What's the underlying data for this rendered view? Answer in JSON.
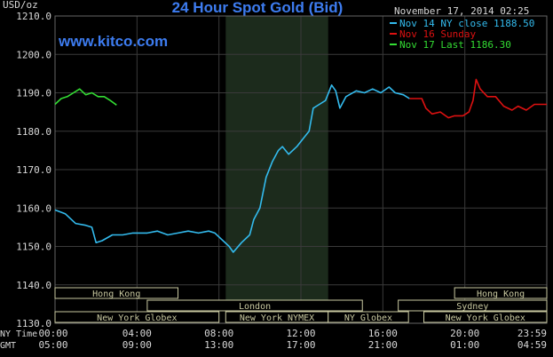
{
  "chart_data": {
    "type": "line",
    "title": "24 Hour Spot Gold (Bid)",
    "ylabel": "USD/oz",
    "watermark": "www.kitco.com",
    "timestamp": "November 17, 2014 02:25",
    "ylim": [
      1130,
      1210
    ],
    "yticks": [
      "1210.0",
      "1200.0",
      "1190.0",
      "1180.0",
      "1170.0",
      "1160.0",
      "1150.0",
      "1140.0",
      "1130.0"
    ],
    "x_rows": [
      {
        "label": "NY Time",
        "ticks": [
          "00:00",
          "04:00",
          "08:00",
          "12:00",
          "16:00",
          "20:00",
          "23:59"
        ]
      },
      {
        "label": "GMT",
        "ticks": [
          "05:00",
          "09:00",
          "13:00",
          "17:00",
          "21:00",
          "01:00",
          "04:59"
        ]
      }
    ],
    "legend": [
      {
        "label": "Nov 14 NY close 1188.50",
        "color": "#33bbee"
      },
      {
        "label": "Nov 16 Sunday",
        "color": "#dd1111"
      },
      {
        "label": "Nov 17 Last 1186.30",
        "color": "#33dd33"
      }
    ],
    "sessions": [
      {
        "name": "Hong Kong",
        "start": 0,
        "end": 6,
        "row": 0
      },
      {
        "name": "London",
        "start": 4.5,
        "end": 15,
        "row": 1
      },
      {
        "name": "New York Globex",
        "start": 0,
        "end": 8,
        "row": 2
      },
      {
        "name": "New York NYMEX",
        "start": 8.33,
        "end": 13.33,
        "row": 2
      },
      {
        "name": "NY Globex",
        "start": 13.33,
        "end": 17.25,
        "row": 2
      },
      {
        "name": "Hong Kong",
        "start": 19.5,
        "end": 24,
        "row": 0
      },
      {
        "name": "Sydney",
        "start": 16.75,
        "end": 24,
        "row": 1
      },
      {
        "name": "New York Globex",
        "start": 18,
        "end": 24,
        "row": 2
      }
    ],
    "series": [
      {
        "name": "Nov 14 NY close 1188.50",
        "color": "#33bbee",
        "points": [
          [
            0,
            1159.5
          ],
          [
            0.5,
            1158.5
          ],
          [
            1,
            1156
          ],
          [
            1.5,
            1155.5
          ],
          [
            1.8,
            1155
          ],
          [
            2,
            1151
          ],
          [
            2.3,
            1151.5
          ],
          [
            2.8,
            1153
          ],
          [
            3.3,
            1153
          ],
          [
            3.8,
            1153.5
          ],
          [
            4.5,
            1153.5
          ],
          [
            5,
            1154
          ],
          [
            5.5,
            1153
          ],
          [
            6,
            1153.5
          ],
          [
            6.5,
            1154
          ],
          [
            7,
            1153.5
          ],
          [
            7.5,
            1154
          ],
          [
            7.8,
            1153.5
          ],
          [
            8.1,
            1152
          ],
          [
            8.5,
            1150
          ],
          [
            8.7,
            1148.5
          ],
          [
            9.1,
            1151
          ],
          [
            9.5,
            1153
          ],
          [
            9.7,
            1157
          ],
          [
            10,
            1160
          ],
          [
            10.3,
            1168
          ],
          [
            10.6,
            1172
          ],
          [
            10.9,
            1175
          ],
          [
            11.1,
            1176
          ],
          [
            11.4,
            1174
          ],
          [
            11.8,
            1176
          ],
          [
            12.1,
            1178
          ],
          [
            12.4,
            1180
          ],
          [
            12.6,
            1186
          ],
          [
            12.9,
            1187
          ],
          [
            13.2,
            1188
          ],
          [
            13.5,
            1192
          ],
          [
            13.7,
            1190.5
          ],
          [
            13.9,
            1186
          ],
          [
            14.2,
            1189
          ],
          [
            14.7,
            1190.5
          ],
          [
            15.1,
            1190
          ],
          [
            15.5,
            1191
          ],
          [
            15.9,
            1190
          ],
          [
            16.3,
            1191.5
          ],
          [
            16.6,
            1190
          ],
          [
            17,
            1189.5
          ],
          [
            17.3,
            1188.5
          ]
        ]
      },
      {
        "name": "Nov 16 Sunday",
        "color": "#dd1111",
        "points": [
          [
            17.3,
            1188.5
          ],
          [
            17.9,
            1188.5
          ],
          [
            18.1,
            1186
          ],
          [
            18.4,
            1184.5
          ],
          [
            18.8,
            1185
          ],
          [
            19.2,
            1183.5
          ],
          [
            19.5,
            1184
          ],
          [
            19.9,
            1184
          ],
          [
            20.2,
            1185
          ],
          [
            20.4,
            1188
          ],
          [
            20.55,
            1193.5
          ],
          [
            20.75,
            1191
          ],
          [
            21.1,
            1189
          ],
          [
            21.5,
            1189
          ],
          [
            21.9,
            1186.5
          ],
          [
            22.3,
            1185.5
          ],
          [
            22.6,
            1186.5
          ],
          [
            23,
            1185.5
          ],
          [
            23.4,
            1187
          ],
          [
            23.8,
            1187
          ],
          [
            24,
            1187
          ]
        ]
      },
      {
        "name": "Nov 17 Last 1186.30",
        "color": "#33dd33",
        "points": [
          [
            0,
            1187
          ],
          [
            0.3,
            1188.5
          ],
          [
            0.6,
            1189
          ],
          [
            0.9,
            1190
          ],
          [
            1.2,
            1191
          ],
          [
            1.5,
            1189.5
          ],
          [
            1.8,
            1190
          ],
          [
            2.1,
            1189
          ],
          [
            2.4,
            1189
          ],
          [
            2.7,
            1188
          ],
          [
            3,
            1186.8
          ]
        ]
      }
    ],
    "shaded_region": {
      "start": 8.33,
      "end": 13.33,
      "color": "#1c2b1c"
    },
    "grid": true
  }
}
